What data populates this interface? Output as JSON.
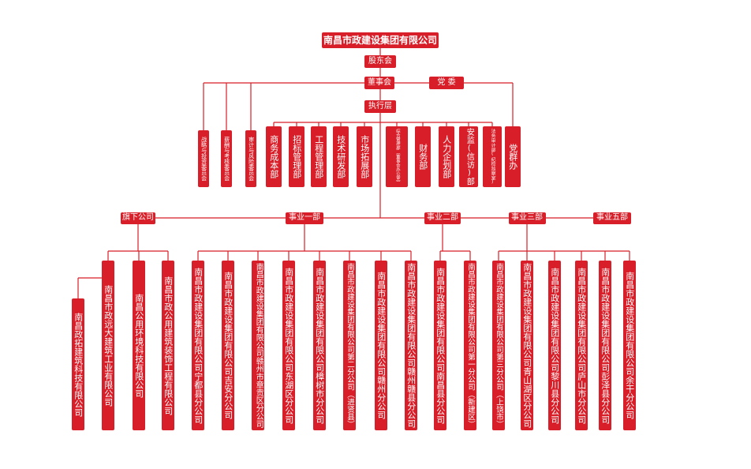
{
  "title": "南昌市政建设集团有限公司",
  "shareholders": "股东会",
  "board": "董事会",
  "party": "党 委",
  "executive": "执行层",
  "committees": [
    "战略与投资委员会",
    "薪酬与考核委员会",
    "审计与风险委员会"
  ],
  "departments": [
    "商务成本部",
    "招标管理部",
    "工程管理部",
    "技术研发部",
    "市场拓展部",
    "综合管理部（董事会办公室）",
    "财务部",
    "人力企划部",
    "安监(信访)部",
    "法务审计部(纪检监察室)",
    "党群办"
  ],
  "divisions": [
    {
      "name": "旗下公司",
      "units": [
        "南昌政拓建筑科技有限公司",
        "南昌市政远大建筑工业有限公司",
        "南昌公用环境科技有限公司",
        "南昌市政公用建筑装饰工程有限公司"
      ]
    },
    {
      "name": "事业一部",
      "units": [
        "南昌市政建设集团有限公司宁都县分公司",
        "南昌市政建设集团有限公司吉安分公司",
        "南昌市政建设集团有限公司赣州市章贡区分公司",
        "南昌市政建设集团有限公司东湖区分公司",
        "南昌市政建设集团有限公司樟树市分公司",
        "南昌市政建设集团有限公司第二分公司（进贤县）",
        "南昌市政建设集团有限公司赣州分公司",
        "南昌市政建设集团有限公司赣州赣县分公司"
      ]
    },
    {
      "name": "事业二部",
      "units": [
        "南昌市政建设集团有限公司南昌县分公司",
        "南昌市政建设集团有限公司第一分公司（新建区）"
      ]
    },
    {
      "name": "事业三部",
      "units": [
        "南昌市政建设集团有限公司第三分公司（上饶市）",
        "南昌市政建设集团有限公司青山湖区分公司",
        "南昌市政建设集团有限公司黎川县分公司",
        "南昌市政建设集团有限公司庐山市分公司",
        "南昌市政建设集团有限公司彭泽县分公司",
        "南昌市政建设集团有限公司余干分公司"
      ]
    },
    {
      "name": "事业五部",
      "units": []
    }
  ]
}
